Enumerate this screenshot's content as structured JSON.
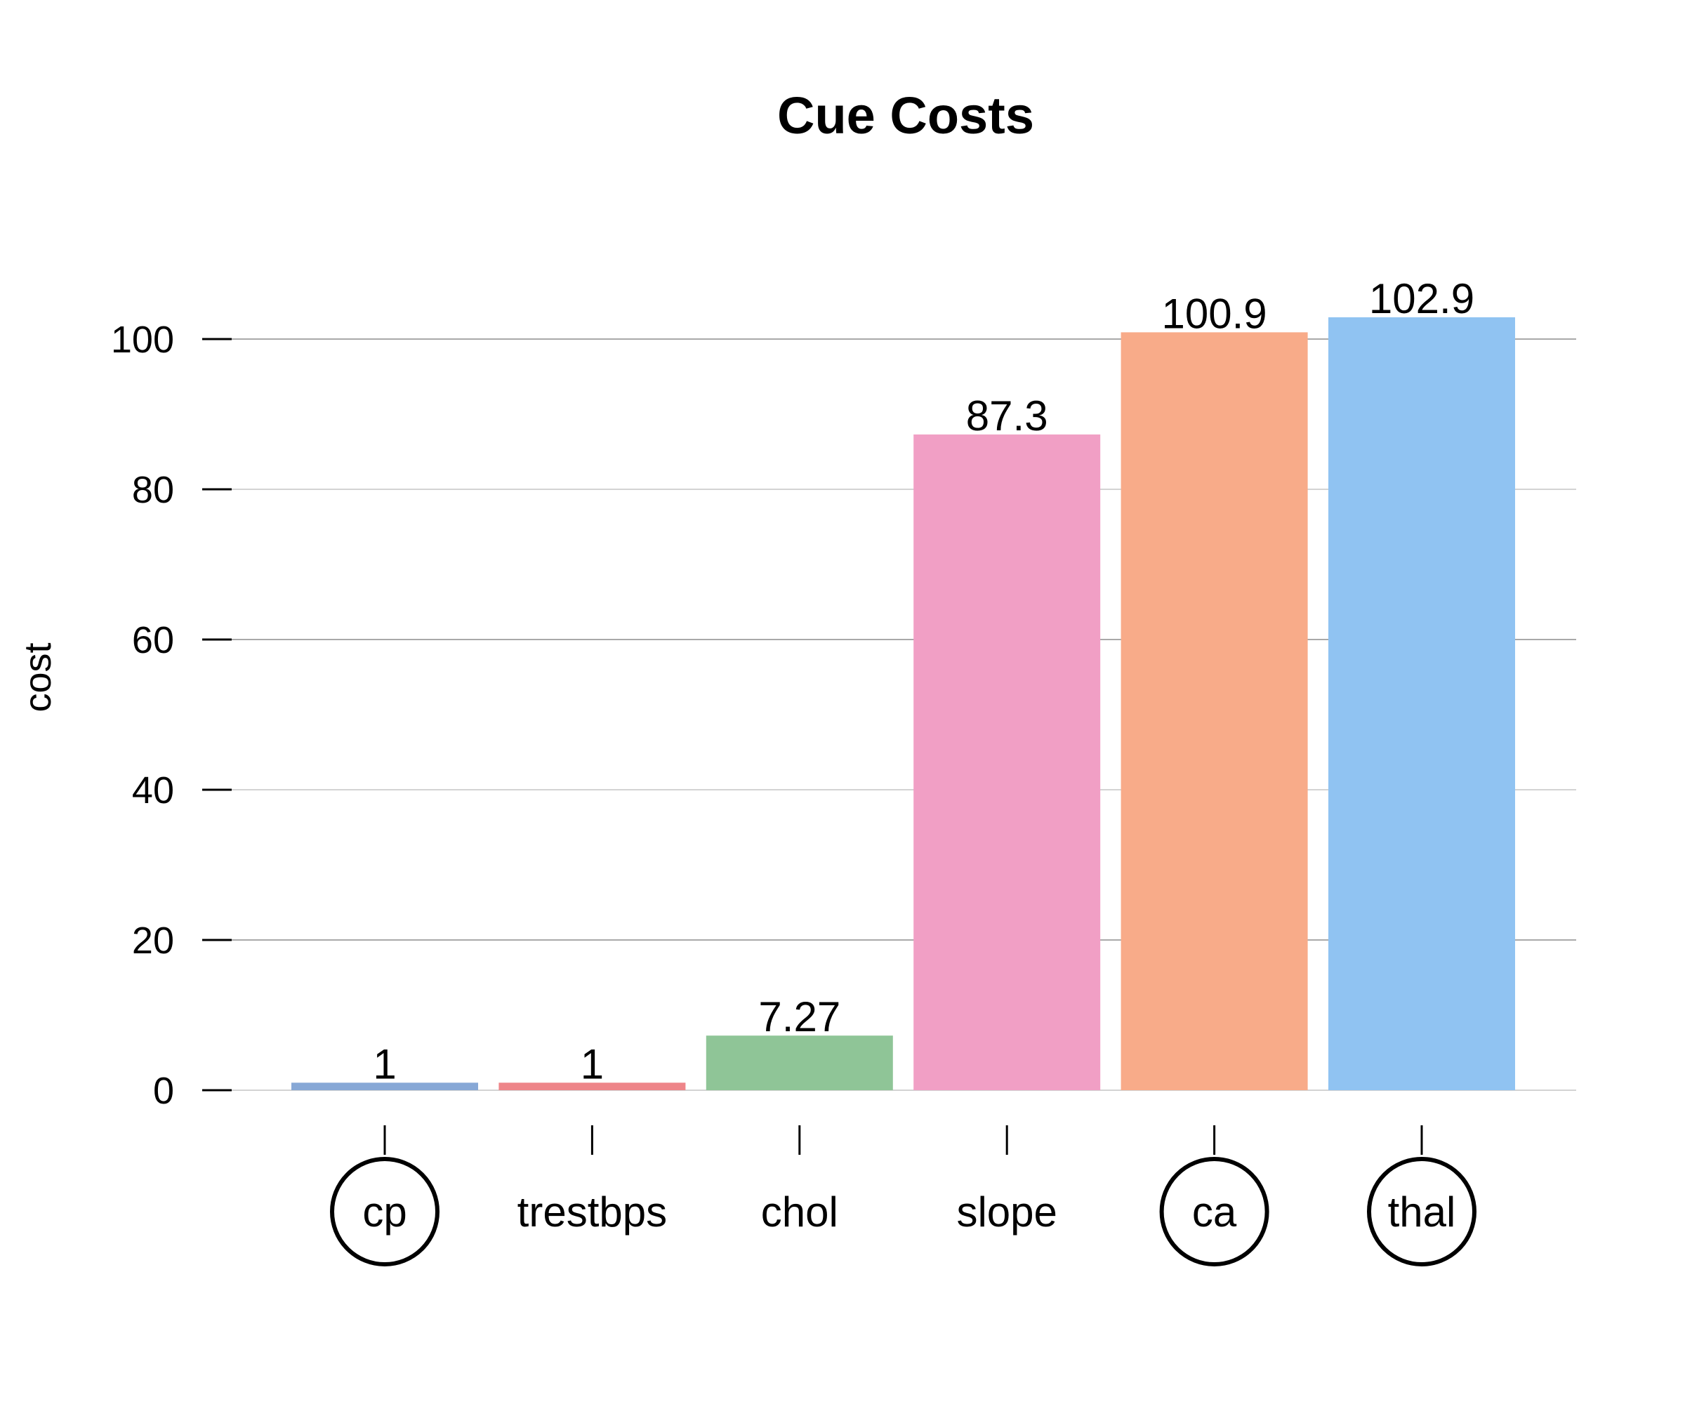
{
  "chart_data": {
    "type": "bar",
    "title": "Cue Costs",
    "xlabel": "",
    "ylabel": "cost",
    "ylim": [
      0,
      105
    ],
    "yticks": [
      0,
      20,
      40,
      60,
      80,
      100
    ],
    "grid": true,
    "categories": [
      "cp",
      "trestbps",
      "chol",
      "slope",
      "ca",
      "thal"
    ],
    "values": [
      1,
      1,
      7.27,
      87.3,
      100.9,
      102.9
    ],
    "value_labels": [
      "1",
      "1",
      "7.27",
      "87.3",
      "100.9",
      "102.9"
    ],
    "colors": [
      "#87A8D6",
      "#EE8589",
      "#8FC597",
      "#F19FC5",
      "#F8AB89",
      "#90C3F2"
    ],
    "circled": [
      "cp",
      "ca",
      "thal"
    ]
  }
}
